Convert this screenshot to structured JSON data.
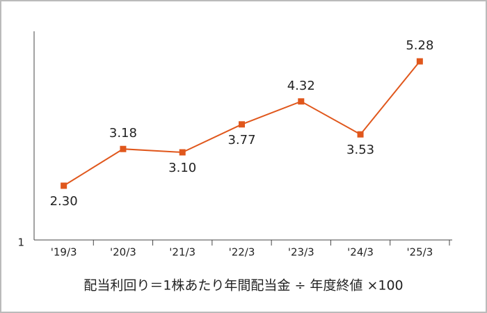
{
  "chart_data": {
    "type": "line",
    "categories": [
      "'19/3",
      "'20/3",
      "'21/3",
      "'22/3",
      "'23/3",
      "'24/3",
      "'25/3"
    ],
    "series": [
      {
        "color": "#e0571c",
        "values": [
          2.3,
          3.18,
          3.1,
          3.77,
          4.32,
          3.53,
          5.28
        ],
        "value_labels": [
          "2.30",
          "3.18",
          "3.10",
          "3.77",
          "4.32",
          "3.53",
          "5.28"
        ]
      }
    ],
    "ylim": [
      1,
      6
    ],
    "yticks": [
      1
    ],
    "footnote": "配当利回り＝1株あたり年間配当金 ÷ 年度終値 ×100"
  }
}
